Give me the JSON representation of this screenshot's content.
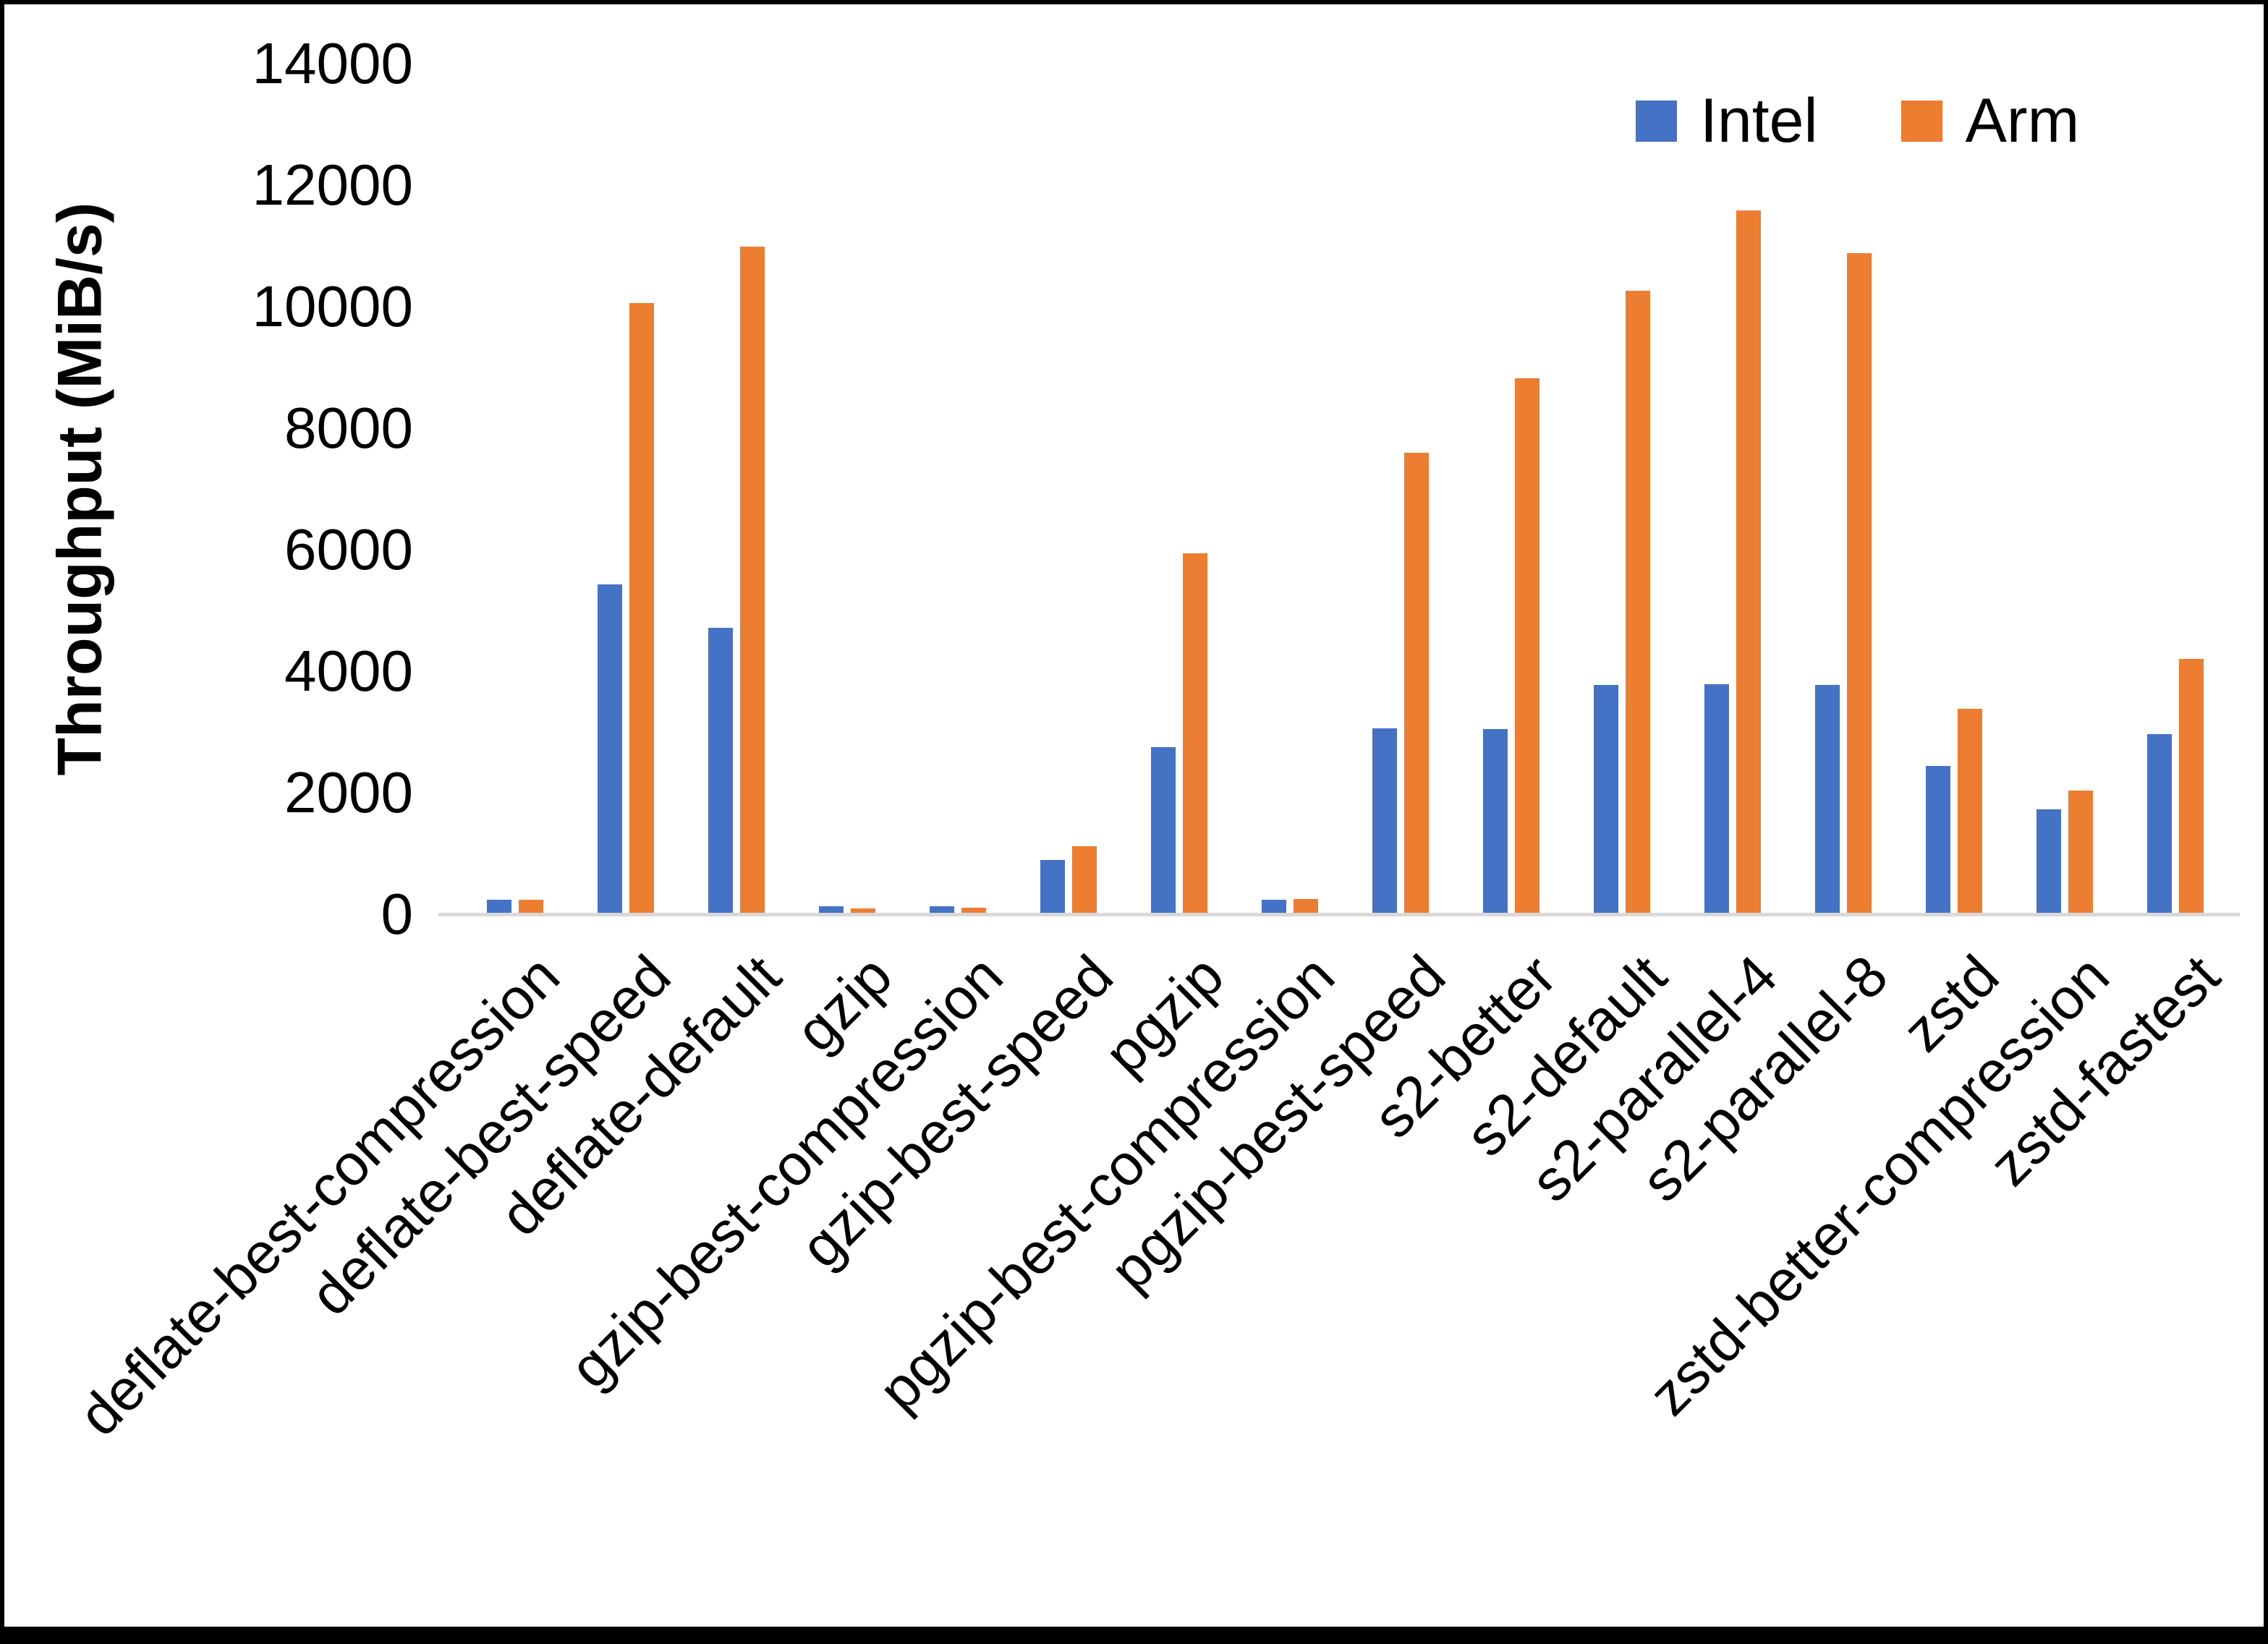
{
  "chart_data": {
    "type": "bar",
    "title": "",
    "ylabel": "Throughput (MiB/s)",
    "xlabel": "",
    "grid": false,
    "legend_position": "top-right",
    "ylim": [
      0,
      14000
    ],
    "ytick_interval": 2000,
    "yticks": [
      "0",
      "2000",
      "4000",
      "6000",
      "8000",
      "10000",
      "12000",
      "14000"
    ],
    "categories": [
      "deflate-best-compression",
      "deflate-best-speed",
      "deflate-default",
      "gzip",
      "gzip-best-compression",
      "gzip-best-speed",
      "pgzip",
      "pgzip-best-compression",
      "pgzip-best-speed",
      "s2-better",
      "s2-default",
      "s2-parallel-4",
      "s2-parallel-8",
      "zstd",
      "zstd-better-compression",
      "zstd-fastest"
    ],
    "series": [
      {
        "name": "Intel",
        "color": "#4472C4",
        "values": [
          240,
          5430,
          4715,
          130,
          130,
          890,
          2750,
          235,
          3060,
          3050,
          3775,
          3785,
          3775,
          2440,
          1725,
          2965
        ]
      },
      {
        "name": "Arm",
        "color": "#ED7D31",
        "values": [
          240,
          10060,
          10990,
          100,
          105,
          1120,
          5940,
          245,
          7600,
          8820,
          10260,
          11580,
          10880,
          3380,
          2035,
          4200
        ]
      }
    ],
    "colors": {
      "axis_line": "#D9D9D9",
      "text": "#000000",
      "background": "#FFFFFF",
      "frame": "#000000"
    }
  }
}
